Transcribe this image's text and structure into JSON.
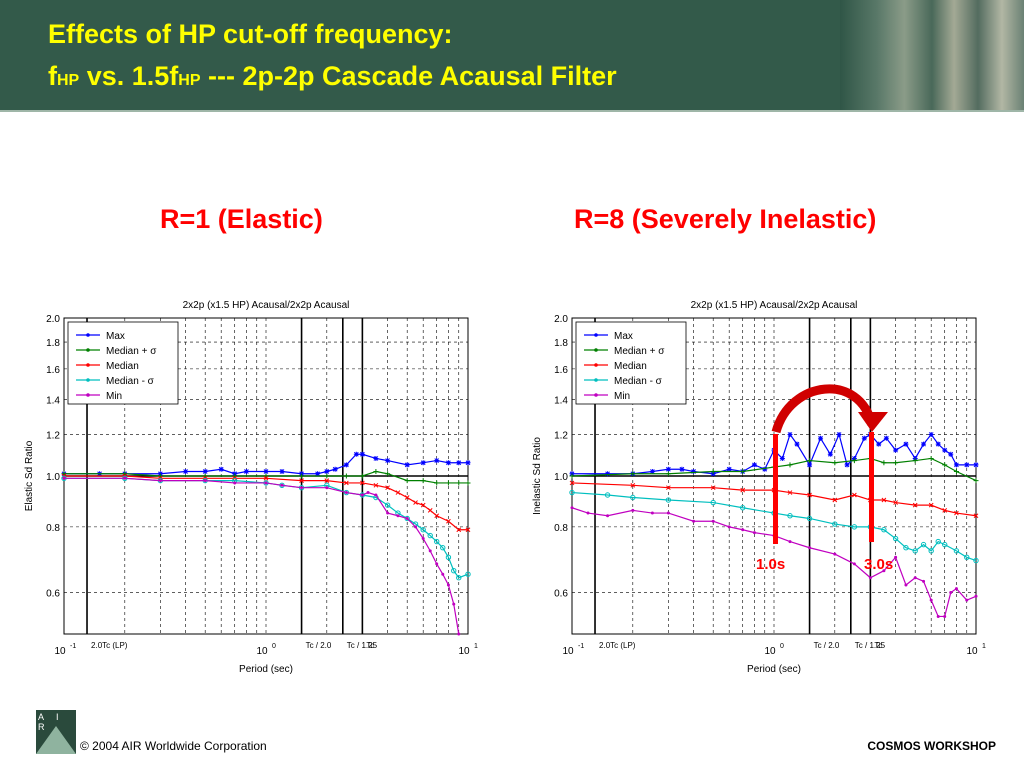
{
  "header": {
    "line1": "Effects of HP cut-off frequency:",
    "line2_f": "f",
    "line2_hp1": "HP",
    "line2_mid": " vs. 1.5f",
    "line2_hp2": "HP",
    "line2_rest": " --- 2p-2p Cascade Acausal Filter"
  },
  "headings": {
    "left": "R=1 (Elastic)",
    "right": "R=8 (Severely Inelastic)"
  },
  "annotations": {
    "marker1": "1.0s",
    "marker2": "3.0s"
  },
  "footer": {
    "copyright": "© 2004 AIR Worldwide Corporation",
    "workshop": "COSMOS WORKSHOP",
    "logo": "A I R"
  },
  "colors": {
    "max": "#0000ff",
    "median_plus": "#008000",
    "median": "#ff0000",
    "median_minus": "#00bfbf",
    "min": "#c000c0",
    "title": "#ffff00",
    "heading": "#ff0000"
  },
  "chart_data": [
    {
      "type": "line",
      "title": "2x2p (x1.5 HP) Acausal/2x2p Acausal",
      "xlabel": "Period (sec)",
      "ylabel": "Elastic Sd Ratio",
      "xscale": "log",
      "xlim": [
        0.1,
        10
      ],
      "ylim": [
        0.5,
        2.0
      ],
      "yscale": "log",
      "yticks": [
        "2.0",
        "1.8",
        "1.6",
        "1.4",
        "1.2",
        "1.0",
        "0.8",
        "0.6"
      ],
      "xticks": [
        "10^-1",
        "10^0",
        "10^1"
      ],
      "vlines": [
        "2.0Tc (LP)",
        "Tc / 2.0",
        "Tc / 1.25",
        "Tc"
      ],
      "legend_position": "top-left",
      "grid": true,
      "series": [
        {
          "name": "Max",
          "marker": "*",
          "x": [
            0.1,
            0.15,
            0.2,
            0.3,
            0.4,
            0.5,
            0.6,
            0.7,
            0.8,
            1.0,
            1.2,
            1.5,
            1.8,
            2.0,
            2.2,
            2.5,
            2.8,
            3.0,
            3.5,
            4.0,
            5.0,
            6.0,
            7.0,
            8.0,
            9.0,
            10.0
          ],
          "values": [
            1.01,
            1.01,
            1.01,
            1.01,
            1.02,
            1.02,
            1.03,
            1.01,
            1.02,
            1.02,
            1.02,
            1.01,
            1.01,
            1.02,
            1.03,
            1.05,
            1.1,
            1.1,
            1.08,
            1.07,
            1.05,
            1.06,
            1.07,
            1.06,
            1.06,
            1.06
          ]
        },
        {
          "name": "Median + σ",
          "marker": "+",
          "x": [
            0.1,
            0.2,
            0.3,
            0.5,
            0.7,
            1.0,
            1.5,
            2.0,
            2.5,
            3.0,
            3.5,
            4.0,
            5.0,
            6.0,
            7.0,
            8.0,
            9.0,
            10.0
          ],
          "values": [
            1.01,
            1.01,
            1.0,
            1.0,
            1.0,
            1.0,
            1.0,
            1.0,
            1.0,
            1.0,
            1.02,
            1.01,
            0.98,
            0.98,
            0.97,
            0.97,
            0.97,
            0.97
          ]
        },
        {
          "name": "Median",
          "marker": "x",
          "x": [
            0.1,
            0.2,
            0.3,
            0.5,
            0.7,
            1.0,
            1.5,
            2.0,
            2.5,
            3.0,
            3.5,
            4.0,
            4.5,
            5.0,
            5.5,
            6.0,
            6.5,
            7.0,
            8.0,
            9.0,
            10.0
          ],
          "values": [
            1.0,
            1.0,
            0.99,
            0.99,
            0.99,
            0.99,
            0.98,
            0.98,
            0.97,
            0.97,
            0.96,
            0.95,
            0.93,
            0.91,
            0.89,
            0.88,
            0.86,
            0.84,
            0.82,
            0.79,
            0.79
          ]
        },
        {
          "name": "Median - σ",
          "marker": "o",
          "x": [
            0.1,
            0.2,
            0.3,
            0.5,
            0.7,
            1.0,
            1.2,
            1.5,
            2.0,
            2.5,
            3.0,
            3.5,
            4.0,
            4.5,
            5.0,
            5.5,
            6.0,
            6.5,
            7.0,
            7.5,
            8.0,
            8.5,
            9.0,
            10.0
          ],
          "values": [
            0.99,
            0.99,
            0.98,
            0.98,
            0.98,
            0.97,
            0.96,
            0.95,
            0.96,
            0.93,
            0.92,
            0.91,
            0.88,
            0.85,
            0.83,
            0.81,
            0.79,
            0.77,
            0.75,
            0.73,
            0.7,
            0.66,
            0.64,
            0.65
          ]
        },
        {
          "name": "Min",
          "marker": ".",
          "x": [
            0.1,
            0.2,
            0.3,
            0.5,
            0.7,
            1.0,
            1.2,
            1.5,
            2.0,
            2.5,
            3.0,
            3.2,
            3.5,
            4.0,
            4.5,
            5.0,
            5.5,
            6.0,
            6.5,
            7.0,
            7.5,
            8.0,
            8.5,
            9.0
          ],
          "values": [
            0.99,
            0.99,
            0.98,
            0.98,
            0.97,
            0.97,
            0.96,
            0.95,
            0.95,
            0.93,
            0.92,
            0.93,
            0.92,
            0.85,
            0.84,
            0.83,
            0.8,
            0.76,
            0.72,
            0.68,
            0.65,
            0.62,
            0.57,
            0.5
          ]
        }
      ]
    },
    {
      "type": "line",
      "title": "2x2p (x1.5 HP) Acausal/2x2p Acausal",
      "xlabel": "Period (sec)",
      "ylabel": "Inelastic Sd Ratio",
      "xscale": "log",
      "xlim": [
        0.1,
        10
      ],
      "ylim": [
        0.5,
        2.0
      ],
      "yscale": "log",
      "yticks": [
        "2.0",
        "1.8",
        "1.6",
        "1.4",
        "1.2",
        "1.0",
        "0.8",
        "0.6"
      ],
      "xticks": [
        "10^-1",
        "10^0",
        "10^1"
      ],
      "vlines": [
        "2.0Tc (LP)",
        "Tc / 2.0",
        "Tc / 1.25",
        "Tc"
      ],
      "legend_position": "top-left",
      "grid": true,
      "series": [
        {
          "name": "Max",
          "marker": "*",
          "x": [
            0.1,
            0.15,
            0.2,
            0.25,
            0.3,
            0.35,
            0.4,
            0.5,
            0.6,
            0.7,
            0.8,
            0.9,
            1.0,
            1.1,
            1.2,
            1.3,
            1.5,
            1.7,
            1.9,
            2.1,
            2.3,
            2.5,
            2.8,
            3.0,
            3.3,
            3.6,
            4.0,
            4.5,
            5.0,
            5.5,
            6.0,
            6.5,
            7.0,
            7.5,
            8.0,
            9.0,
            10.0
          ],
          "values": [
            1.01,
            1.01,
            1.01,
            1.02,
            1.03,
            1.03,
            1.02,
            1.01,
            1.03,
            1.02,
            1.05,
            1.03,
            1.12,
            1.08,
            1.2,
            1.15,
            1.05,
            1.18,
            1.1,
            1.2,
            1.05,
            1.08,
            1.18,
            1.2,
            1.15,
            1.18,
            1.12,
            1.15,
            1.08,
            1.15,
            1.2,
            1.15,
            1.12,
            1.1,
            1.05,
            1.05,
            1.05
          ]
        },
        {
          "name": "Median + σ",
          "marker": "+",
          "x": [
            0.1,
            0.2,
            0.3,
            0.5,
            0.7,
            1.0,
            1.2,
            1.5,
            2.0,
            2.5,
            3.0,
            3.5,
            4.0,
            5.0,
            6.0,
            7.0,
            8.0,
            10.0
          ],
          "values": [
            1.0,
            1.01,
            1.01,
            1.02,
            1.02,
            1.04,
            1.05,
            1.07,
            1.06,
            1.07,
            1.08,
            1.06,
            1.06,
            1.07,
            1.08,
            1.05,
            1.02,
            0.98
          ]
        },
        {
          "name": "Median",
          "marker": "x",
          "x": [
            0.1,
            0.2,
            0.3,
            0.5,
            0.7,
            1.0,
            1.2,
            1.5,
            2.0,
            2.5,
            3.0,
            3.5,
            4.0,
            5.0,
            6.0,
            7.0,
            8.0,
            10.0
          ],
          "values": [
            0.97,
            0.96,
            0.95,
            0.95,
            0.94,
            0.94,
            0.93,
            0.92,
            0.9,
            0.92,
            0.9,
            0.9,
            0.89,
            0.88,
            0.88,
            0.86,
            0.85,
            0.84
          ]
        },
        {
          "name": "Median - σ",
          "marker": "o",
          "x": [
            0.1,
            0.15,
            0.2,
            0.3,
            0.5,
            0.7,
            1.0,
            1.2,
            1.5,
            2.0,
            2.5,
            3.0,
            3.5,
            4.0,
            4.5,
            5.0,
            5.5,
            6.0,
            6.5,
            7.0,
            8.0,
            9.0,
            10.0
          ],
          "values": [
            0.93,
            0.92,
            0.91,
            0.9,
            0.89,
            0.87,
            0.85,
            0.84,
            0.83,
            0.81,
            0.8,
            0.8,
            0.79,
            0.76,
            0.73,
            0.72,
            0.74,
            0.72,
            0.75,
            0.74,
            0.72,
            0.7,
            0.69
          ]
        },
        {
          "name": "Min",
          "marker": ".",
          "x": [
            0.1,
            0.12,
            0.15,
            0.2,
            0.25,
            0.3,
            0.4,
            0.5,
            0.6,
            0.7,
            0.8,
            1.0,
            1.2,
            1.5,
            2.0,
            2.5,
            3.0,
            3.5,
            4.0,
            4.5,
            5.0,
            5.5,
            6.0,
            6.5,
            7.0,
            7.5,
            8.0,
            9.0,
            10.0
          ],
          "values": [
            0.87,
            0.85,
            0.84,
            0.86,
            0.85,
            0.85,
            0.82,
            0.82,
            0.8,
            0.79,
            0.78,
            0.77,
            0.75,
            0.73,
            0.71,
            0.68,
            0.64,
            0.66,
            0.7,
            0.62,
            0.64,
            0.63,
            0.58,
            0.54,
            0.54,
            0.6,
            0.61,
            0.58,
            0.59
          ]
        }
      ]
    }
  ]
}
